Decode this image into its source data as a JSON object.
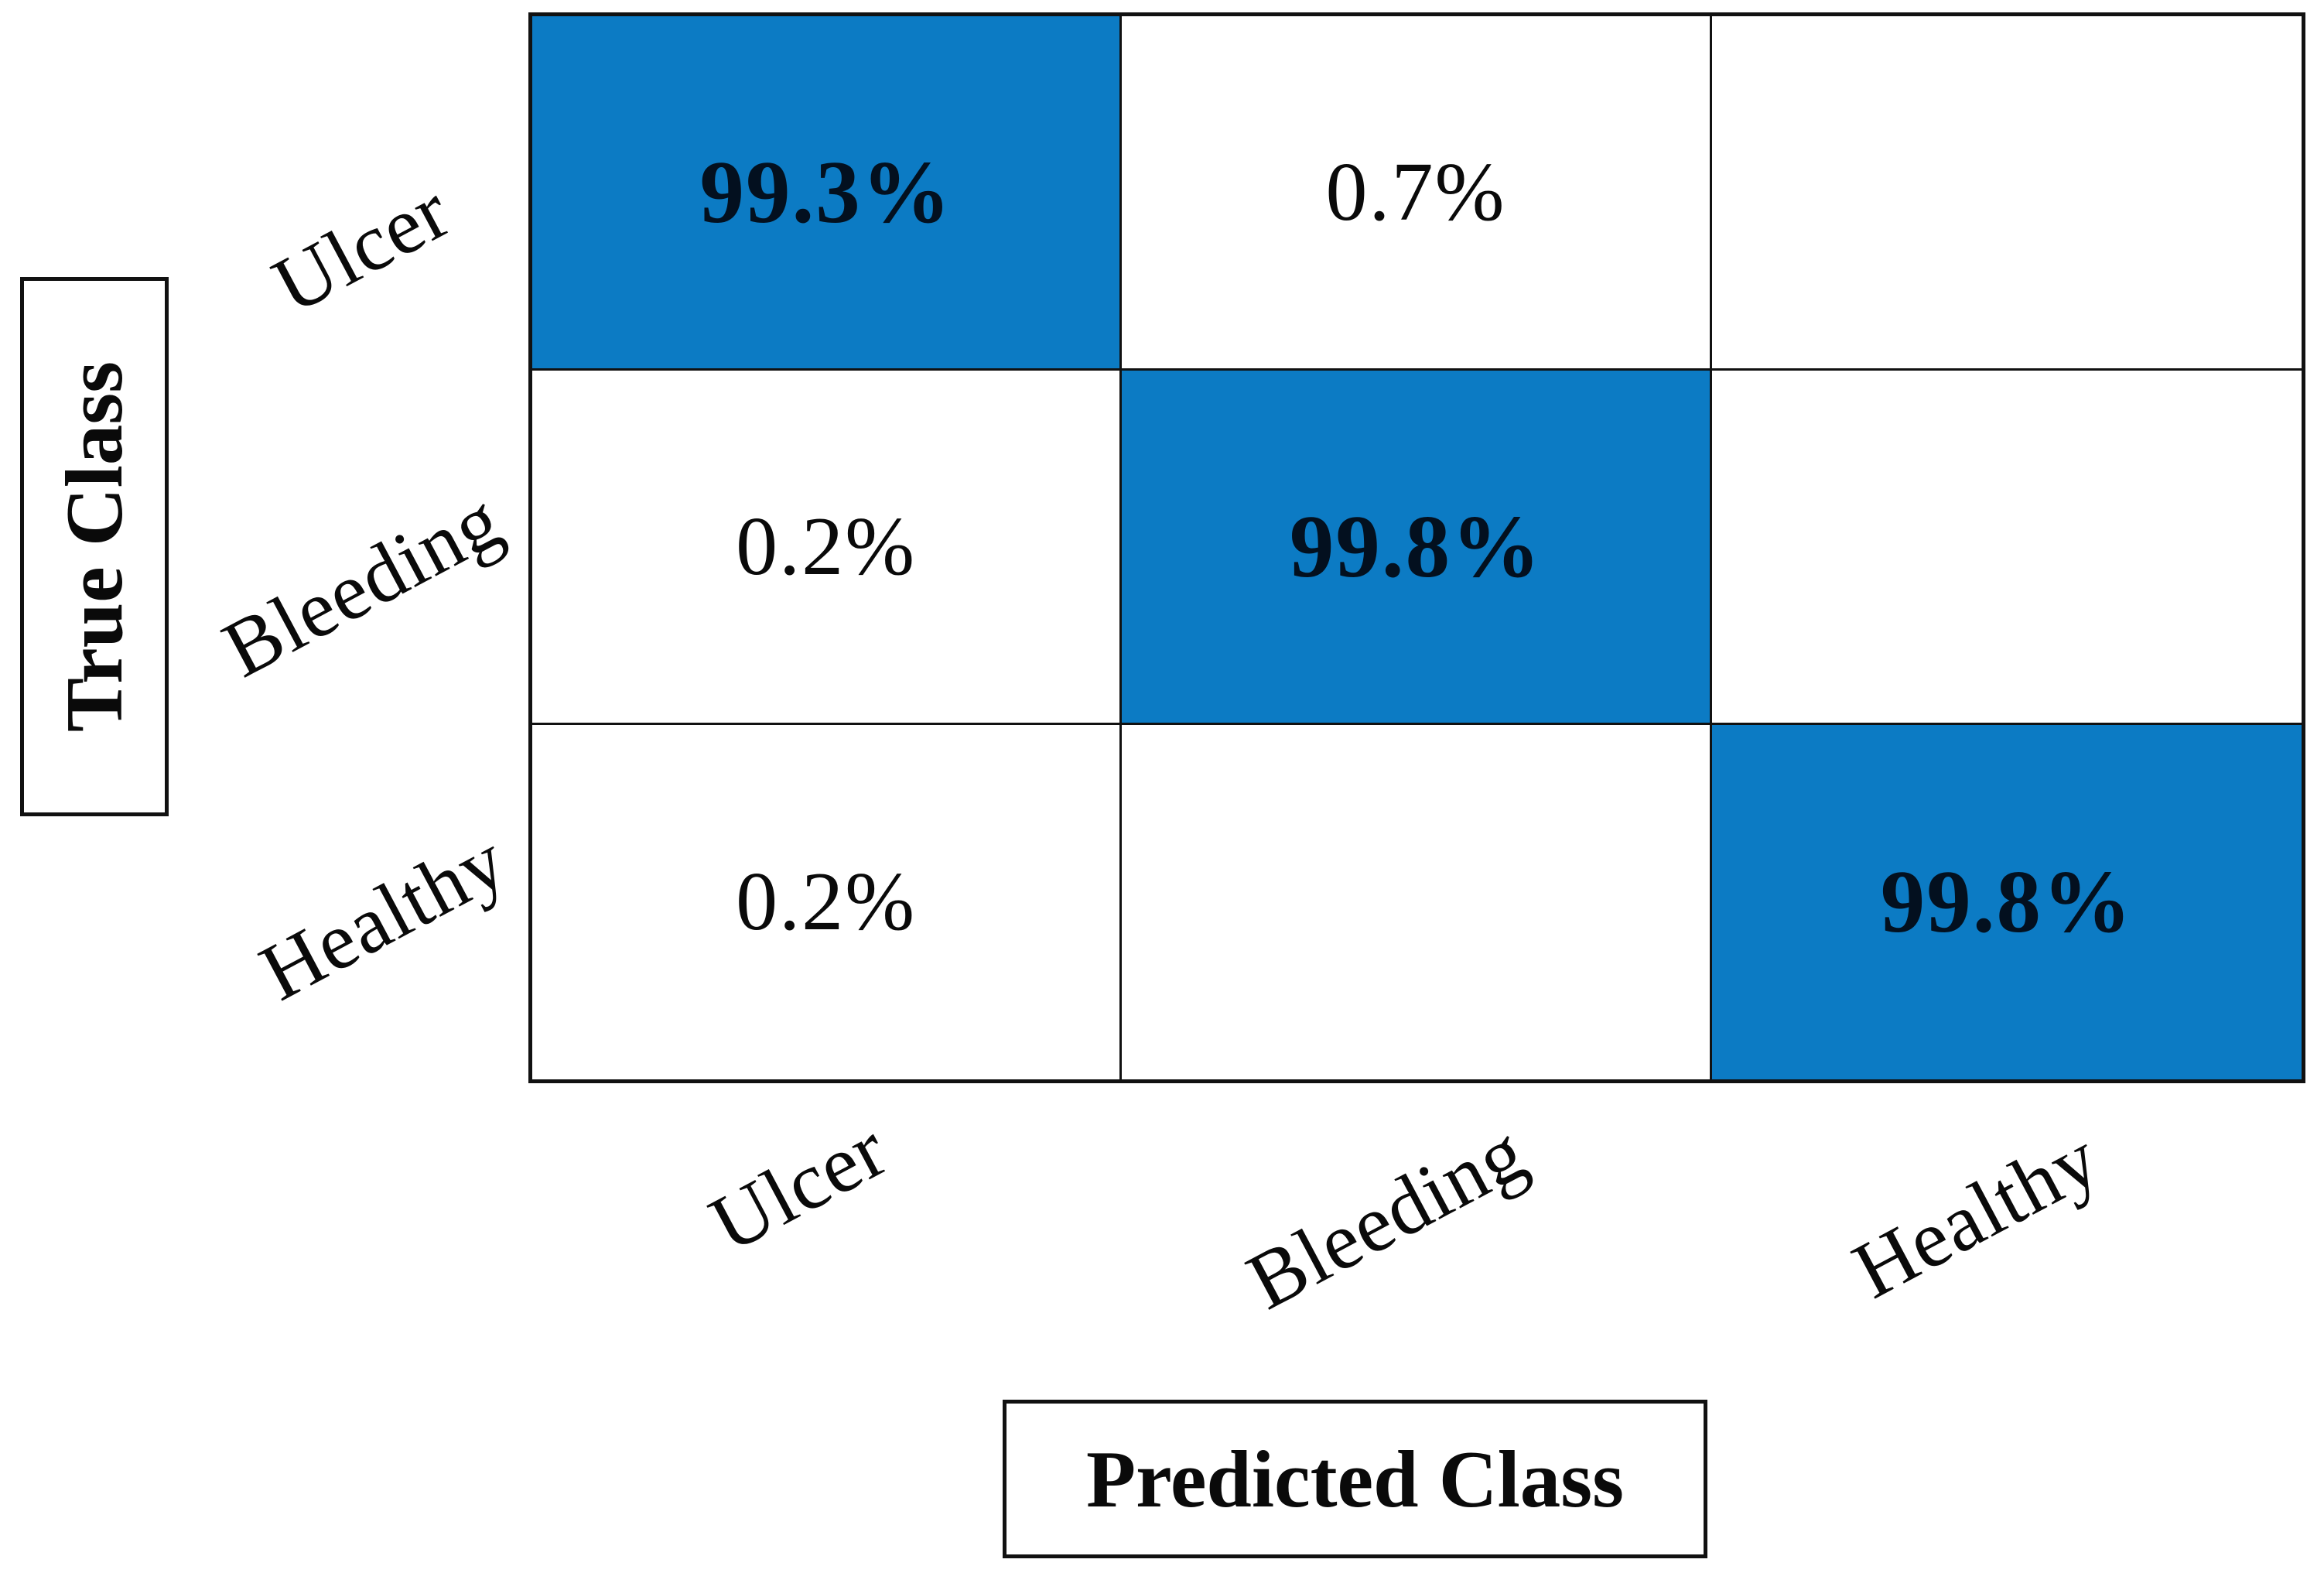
{
  "chart_data": {
    "type": "heatmap",
    "xlabel": "Predicted Class",
    "ylabel": "True Class",
    "x_categories": [
      "Ulcer",
      "Bleeding",
      "Healthy"
    ],
    "y_categories": [
      "Ulcer",
      "Bleeding",
      "Healthy"
    ],
    "values_percent": [
      [
        99.3,
        0.7,
        null
      ],
      [
        0.2,
        99.8,
        null
      ],
      [
        0.2,
        null,
        99.8
      ]
    ],
    "cell_labels": [
      [
        "99.3%",
        "0.7%",
        ""
      ],
      [
        "0.2%",
        "99.8%",
        ""
      ],
      [
        "0.2%",
        "",
        "99.8%"
      ]
    ],
    "diagonal_cell_color": "#0C7BC4",
    "off_diagonal_cell_color": "#FFFFFF",
    "grid_line_color": "#111111",
    "tick_label_rotation_deg": -28,
    "legend": "none",
    "gridlines": "cell borders only"
  }
}
